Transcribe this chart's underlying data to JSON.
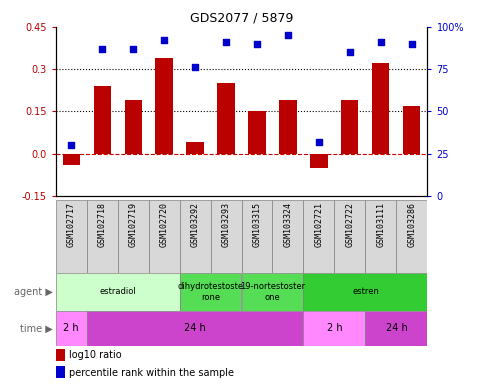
{
  "title": "GDS2077 / 5879",
  "samples": [
    "GSM102717",
    "GSM102718",
    "GSM102719",
    "GSM102720",
    "GSM103292",
    "GSM103293",
    "GSM103315",
    "GSM103324",
    "GSM102721",
    "GSM102722",
    "GSM103111",
    "GSM103286"
  ],
  "log10_ratio": [
    -0.04,
    0.24,
    0.19,
    0.34,
    0.04,
    0.25,
    0.15,
    0.19,
    -0.05,
    0.19,
    0.32,
    0.17
  ],
  "percentile_rank": [
    30,
    87,
    87,
    92,
    76,
    91,
    90,
    95,
    32,
    85,
    91,
    90
  ],
  "ylim_left": [
    -0.15,
    0.45
  ],
  "ylim_right": [
    0,
    100
  ],
  "yticks_left": [
    -0.15,
    0.0,
    0.15,
    0.3,
    0.45
  ],
  "yticks_right": [
    0,
    25,
    50,
    75,
    100
  ],
  "hlines": [
    0.15,
    0.3
  ],
  "bar_color": "#bb0000",
  "scatter_color": "#0000cc",
  "zero_line_color": "#cc0000",
  "agent_groups": [
    {
      "label": "estradiol",
      "start": 0,
      "end": 4,
      "color": "#ccffcc"
    },
    {
      "label": "dihydrotestoste\nrone",
      "start": 4,
      "end": 6,
      "color": "#55dd55"
    },
    {
      "label": "19-nortestoster\none",
      "start": 6,
      "end": 8,
      "color": "#55dd55"
    },
    {
      "label": "estren",
      "start": 8,
      "end": 12,
      "color": "#33cc33"
    }
  ],
  "time_groups": [
    {
      "label": "2 h",
      "start": 0,
      "end": 1,
      "color": "#ff88ff"
    },
    {
      "label": "24 h",
      "start": 1,
      "end": 8,
      "color": "#cc44cc"
    },
    {
      "label": "2 h",
      "start": 8,
      "end": 10,
      "color": "#ff88ff"
    },
    {
      "label": "24 h",
      "start": 10,
      "end": 12,
      "color": "#cc44cc"
    }
  ],
  "legend_bar_color": "#bb0000",
  "legend_scatter_color": "#0000cc",
  "legend_bar_label": "log10 ratio",
  "legend_scatter_label": "percentile rank within the sample"
}
